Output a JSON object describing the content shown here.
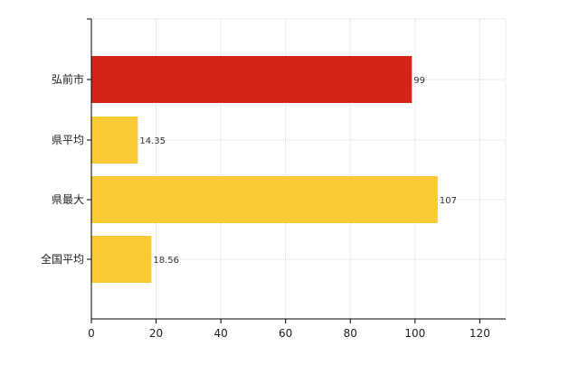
{
  "chart_data": {
    "type": "bar",
    "orientation": "horizontal",
    "categories": [
      "弘前市",
      "県平均",
      "県最大",
      "全国平均"
    ],
    "values": [
      99,
      14.35,
      107,
      18.56
    ],
    "value_labels": [
      "99",
      "14.35",
      "107",
      "18.56"
    ],
    "bar_colors": [
      "#d42416",
      "#fac934",
      "#fac934",
      "#fac934"
    ],
    "title": "",
    "xlabel": "",
    "ylabel": "",
    "xlim": [
      0,
      128
    ],
    "xticks": [
      0,
      20,
      40,
      60,
      80,
      100,
      120
    ],
    "xtick_labels": [
      "0",
      "20",
      "40",
      "60",
      "80",
      "100",
      "120"
    ],
    "grid": true,
    "legend": "none"
  },
  "colors": {
    "highlight": "#d42416",
    "default_bar": "#fac934",
    "grid": "#d9d9d9",
    "axis": "#000000"
  }
}
